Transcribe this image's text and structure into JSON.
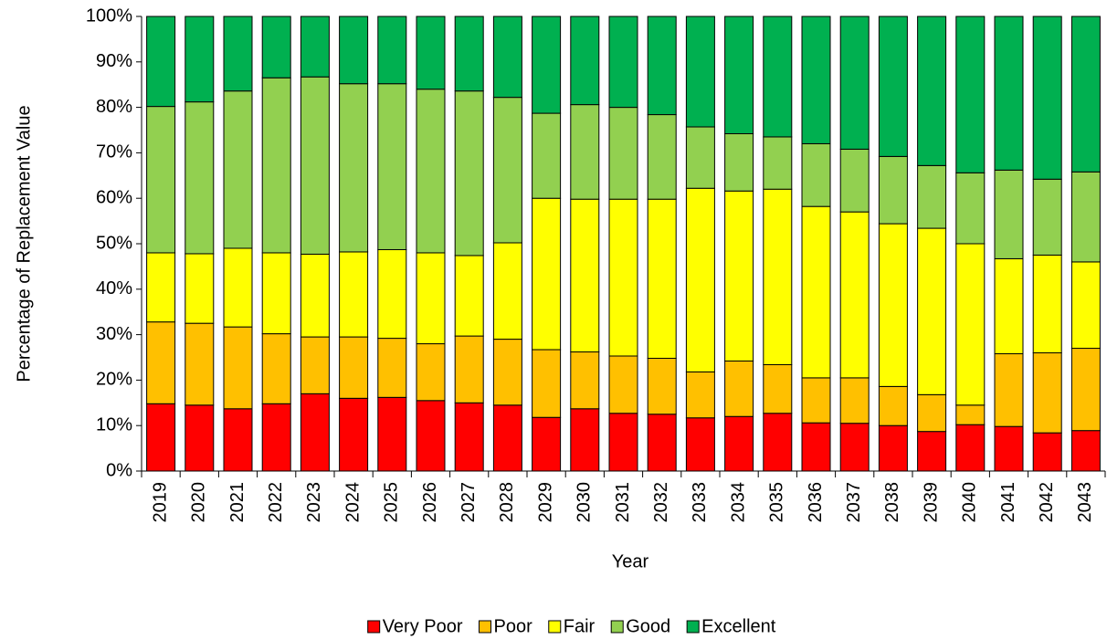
{
  "chart_data": {
    "type": "stacked_bar_100",
    "x_label": "Year",
    "y_label": "Percentage of Replacement Value",
    "categories": [
      "2019",
      "2020",
      "2021",
      "2022",
      "2023",
      "2024",
      "2025",
      "2026",
      "2027",
      "2028",
      "2029",
      "2030",
      "2031",
      "2032",
      "2033",
      "2034",
      "2035",
      "2036",
      "2037",
      "2038",
      "2039",
      "2040",
      "2041",
      "2042",
      "2043"
    ],
    "series": [
      {
        "name": "Very Poor",
        "color": "#ff0000",
        "values": [
          14.8,
          14.5,
          13.7,
          14.8,
          17,
          16,
          16.2,
          15.5,
          15,
          14.5,
          11.8,
          13.7,
          12.7,
          12.5,
          11.7,
          12,
          12.7,
          10.6,
          10.5,
          10,
          8.7,
          10.2,
          9.8,
          8.4,
          8.9
        ]
      },
      {
        "name": "Poor",
        "color": "#ffc000",
        "values": [
          18,
          18,
          18,
          15.4,
          12.5,
          13.5,
          13,
          12.5,
          14.7,
          14.5,
          14.9,
          12.5,
          12.6,
          12.3,
          10.1,
          12.2,
          10.7,
          9.9,
          10,
          8.6,
          8.1,
          4.3,
          16,
          17.6,
          18.1
        ]
      },
      {
        "name": "Fair",
        "color": "#ffff00",
        "values": [
          15.2,
          15.3,
          17.3,
          17.8,
          18.2,
          18.7,
          19.5,
          20,
          17.7,
          21.2,
          33.3,
          33.6,
          34.5,
          35,
          40.4,
          37.4,
          38.6,
          37.7,
          36.5,
          35.8,
          36.6,
          35.5,
          20.9,
          21.5,
          19
        ]
      },
      {
        "name": "Good",
        "color": "#92d050",
        "values": [
          32.2,
          33.4,
          34.6,
          38.5,
          39,
          37,
          36.5,
          36,
          36.2,
          32,
          18.7,
          20.8,
          20.2,
          18.6,
          13.5,
          12.6,
          11.5,
          13.8,
          13.8,
          14.8,
          13.8,
          15.6,
          19.5,
          16.7,
          19.8
        ]
      },
      {
        "name": "Excellent",
        "color": "#00b050",
        "values": [
          19.8,
          18.8,
          16.4,
          13.5,
          13.3,
          14.8,
          14.8,
          16,
          16.4,
          17.8,
          21.3,
          19.4,
          20,
          21.6,
          24.3,
          25.8,
          26.5,
          28,
          29.2,
          30.8,
          32.8,
          34.4,
          33.8,
          35.8,
          34.2
        ]
      }
    ],
    "ylim": [
      0,
      100
    ],
    "yticks": [
      {
        "value": 0,
        "label": "0%"
      },
      {
        "value": 10,
        "label": "10%"
      },
      {
        "value": 20,
        "label": "20%"
      },
      {
        "value": 30,
        "label": "30%"
      },
      {
        "value": 40,
        "label": "40%"
      },
      {
        "value": 50,
        "label": "50%"
      },
      {
        "value": 60,
        "label": "60%"
      },
      {
        "value": 70,
        "label": "70%"
      },
      {
        "value": 80,
        "label": "80%"
      },
      {
        "value": 90,
        "label": "90%"
      },
      {
        "value": 100,
        "label": "100%"
      }
    ],
    "legend": "bottom"
  }
}
